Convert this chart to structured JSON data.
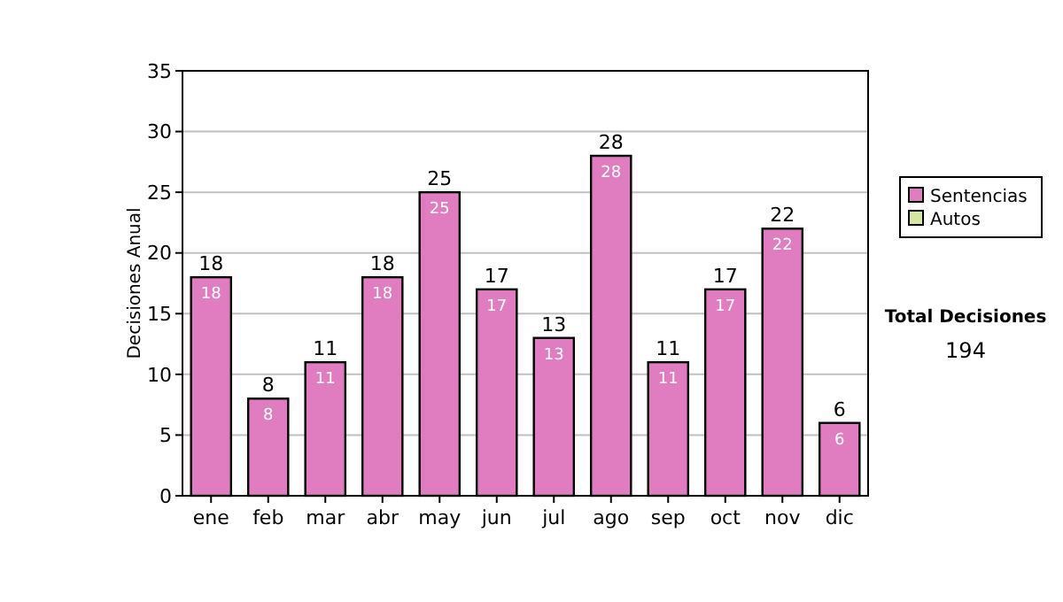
{
  "chart_data": {
    "type": "bar",
    "categories": [
      "ene",
      "feb",
      "mar",
      "abr",
      "may",
      "jun",
      "jul",
      "ago",
      "sep",
      "oct",
      "nov",
      "dic"
    ],
    "series": [
      {
        "name": "Sentencias",
        "color": "#e07cc0",
        "values": [
          18,
          8,
          11,
          18,
          25,
          17,
          13,
          28,
          11,
          17,
          22,
          6
        ]
      },
      {
        "name": "Autos",
        "color": "#d4e6a0",
        "values": [
          null,
          null,
          null,
          null,
          null,
          null,
          null,
          null,
          null,
          null,
          null,
          null
        ]
      }
    ],
    "stacked": true,
    "data_labels": true,
    "totals": [
      "18",
      "8",
      "11",
      "18",
      "25",
      "17",
      "13",
      "28",
      "11",
      "17",
      "22",
      "6"
    ],
    "ylabel": "Decisiones Anual",
    "ylim": [
      0,
      35
    ],
    "yticks": [
      0,
      5,
      10,
      15,
      20,
      25,
      30,
      35
    ],
    "grid": "y",
    "legend": "right",
    "annotations": [
      "Total Decisiones",
      "194"
    ]
  }
}
